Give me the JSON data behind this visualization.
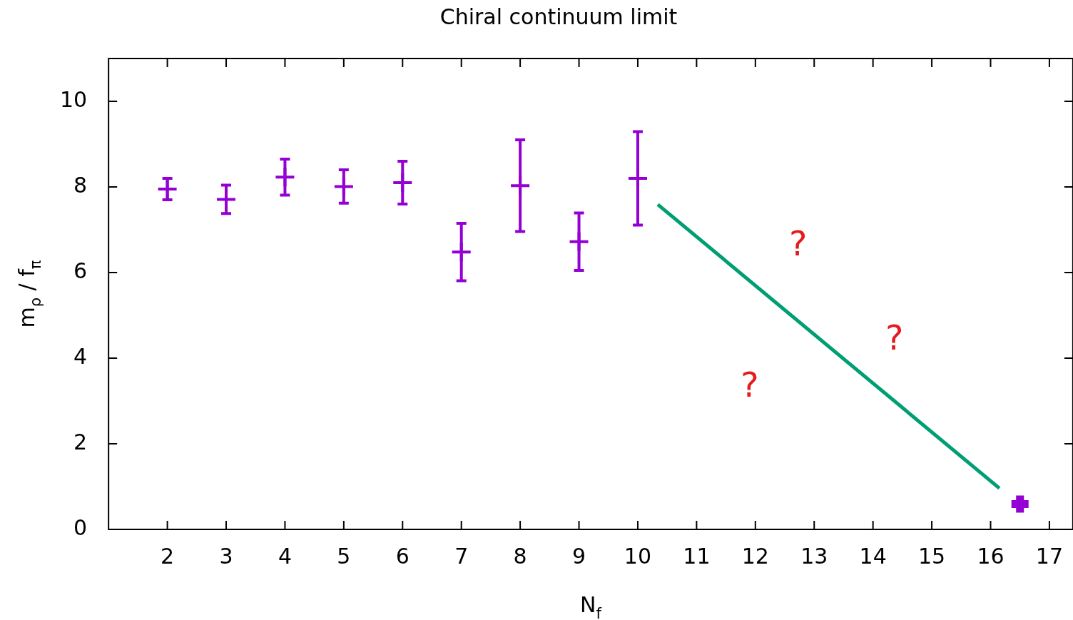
{
  "chart_data": {
    "type": "scatter",
    "title": "Chiral continuum limit",
    "xlabel": "N$_{f}$",
    "ylabel": "m$_{ρ}$ / f$_{π}$",
    "xlim": [
      1,
      17.4
    ],
    "xticks": [
      2,
      3,
      4,
      5,
      6,
      7,
      8,
      9,
      10,
      11,
      12,
      13,
      14,
      15,
      16,
      17
    ],
    "ylim": [
      0,
      11
    ],
    "yticks": [
      0,
      2,
      4,
      6,
      8,
      10
    ],
    "grid": false,
    "legend": false,
    "marker": "cross",
    "series": [
      {
        "color": "#9400d3",
        "x": [
          2,
          3,
          4,
          5,
          6,
          7,
          8,
          9,
          10
        ],
        "values": [
          7.95,
          7.71,
          8.23,
          8.01,
          8.1,
          6.48,
          8.03,
          6.72,
          8.2
        ],
        "errors": [
          0.25,
          0.33,
          0.42,
          0.39,
          0.5,
          0.67,
          1.07,
          0.67,
          1.09
        ]
      },
      {
        "color": "#9400d3",
        "x": [
          16.5
        ],
        "values": [
          0.59
        ]
      },
      {
        "type": "line",
        "color": "#009e73",
        "x": [
          10.34,
          16.15
        ],
        "values": [
          7.59,
          0.96
        ],
        "marker": "none"
      }
    ],
    "annotations": [
      "?",
      "?",
      "?"
    ]
  }
}
